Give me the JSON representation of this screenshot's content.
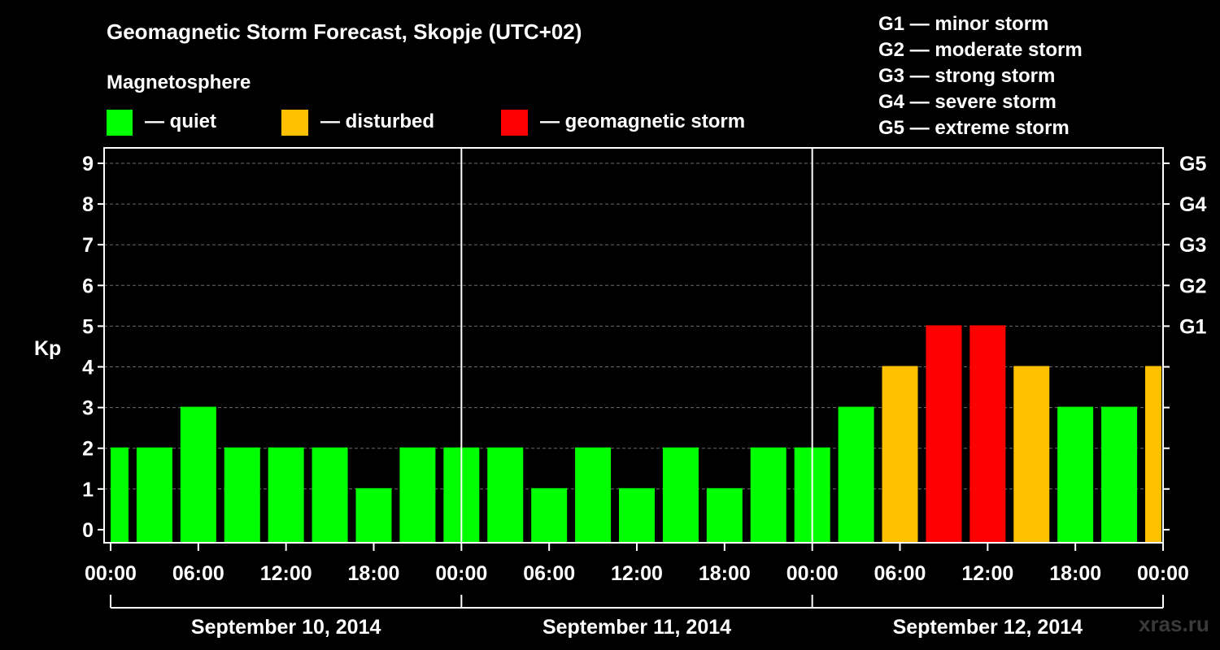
{
  "header": {
    "title": "Geomagnetic Storm Forecast, Skopje (UTC+02)",
    "legend_title": "Magnetosphere",
    "legend": [
      {
        "label": "— quiet",
        "color": "#00ff00"
      },
      {
        "label": "— disturbed",
        "color": "#ffc000"
      },
      {
        "label": "— geomagnetic storm",
        "color": "#ff0000"
      }
    ],
    "g_scale": [
      "G1 — minor storm",
      "G2 — moderate storm",
      "G3 — strong storm",
      "G4 — severe storm",
      "G5 — extreme storm"
    ]
  },
  "watermark": "xras.ru",
  "chart_data": {
    "type": "bar",
    "title": "Geomagnetic Storm Forecast, Skopje (UTC+02)",
    "ylabel": "Kp",
    "ylim": [
      0,
      9
    ],
    "y_ticks": [
      "0",
      "1",
      "2",
      "3",
      "4",
      "5",
      "6",
      "7",
      "8",
      "9"
    ],
    "right_ticks": [
      {
        "kp": 5,
        "label": "G1"
      },
      {
        "kp": 6,
        "label": "G2"
      },
      {
        "kp": 7,
        "label": "G3"
      },
      {
        "kp": 8,
        "label": "G4"
      },
      {
        "kp": 9,
        "label": "G5"
      }
    ],
    "x_tick_labels": [
      "00:00",
      "06:00",
      "12:00",
      "18:00",
      "00:00",
      "06:00",
      "12:00",
      "18:00",
      "00:00",
      "06:00",
      "12:00",
      "18:00",
      "00:00"
    ],
    "days": [
      "September 10, 2014",
      "September 11, 2014",
      "September 12, 2014"
    ],
    "interval_hours": 3,
    "series": [
      {
        "values": [
          2,
          2,
          3,
          2,
          2,
          2,
          1,
          2,
          2,
          2,
          1,
          2,
          1,
          2,
          1,
          2,
          2,
          3,
          4,
          5,
          5,
          4,
          3,
          3,
          4
        ]
      }
    ],
    "color_rule": {
      "quiet": "#00ff00",
      "disturbed": "#ffc000",
      "storm": "#ff0000"
    },
    "grid": "dashed horizontal at each Kp level",
    "legend_position": "top"
  }
}
